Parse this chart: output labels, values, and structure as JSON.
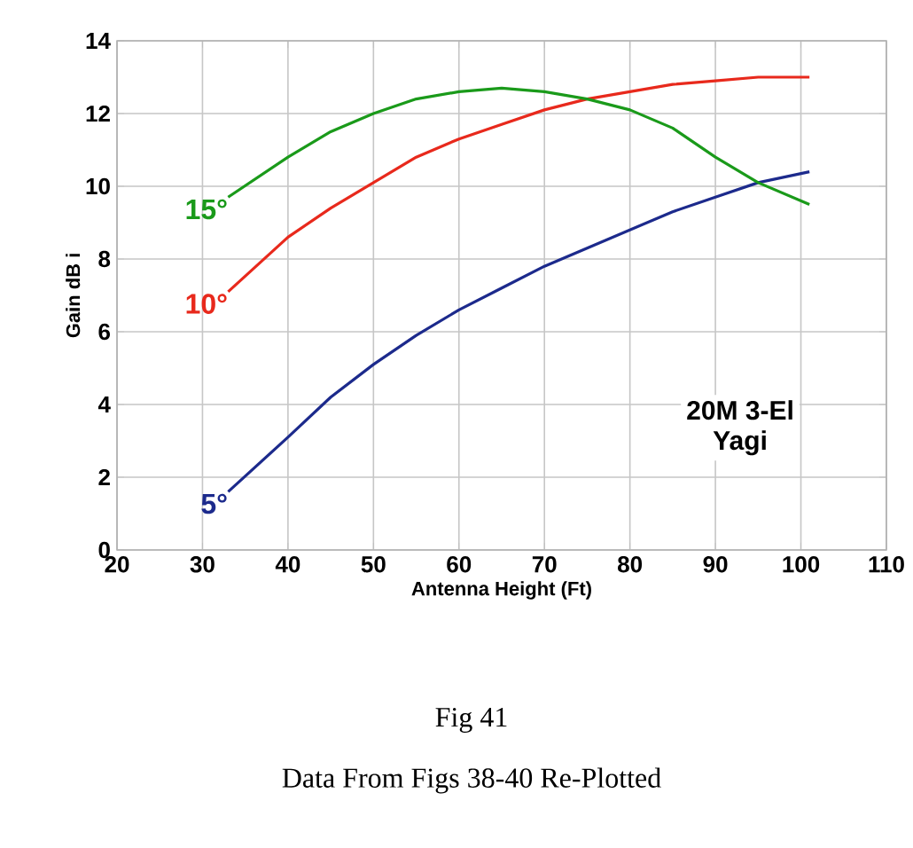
{
  "chart_data": {
    "type": "line",
    "xlabel": "Antenna Height (Ft)",
    "ylabel": "Gain dB i",
    "x": [
      33,
      40,
      45,
      50,
      55,
      60,
      65,
      70,
      75,
      80,
      85,
      90,
      95,
      101
    ],
    "series": [
      {
        "name": "5°",
        "color": "#1c2a8c",
        "values": [
          1.6,
          3.1,
          4.2,
          5.1,
          5.9,
          6.6,
          7.2,
          7.8,
          8.3,
          8.8,
          9.3,
          9.7,
          10.1,
          10.4
        ]
      },
      {
        "name": "10°",
        "color": "#e8291c",
        "values": [
          7.1,
          8.6,
          9.4,
          10.1,
          10.8,
          11.3,
          11.7,
          12.1,
          12.4,
          12.6,
          12.8,
          12.9,
          13.0,
          13.0
        ]
      },
      {
        "name": "15°",
        "color": "#1a9a1a",
        "values": [
          9.7,
          10.8,
          11.5,
          12.0,
          12.4,
          12.6,
          12.7,
          12.6,
          12.4,
          12.1,
          11.6,
          10.8,
          10.1,
          9.5
        ]
      }
    ],
    "xlim": [
      20,
      110
    ],
    "ylim": [
      0,
      14
    ],
    "xticks": [
      20,
      30,
      40,
      50,
      60,
      70,
      80,
      90,
      100,
      110
    ],
    "yticks": [
      0,
      2,
      4,
      6,
      8,
      10,
      12,
      14
    ],
    "grid": true,
    "annotations": [
      "20M 3-El",
      "Yagi",
      "Fig 41",
      "Data From Figs 38-40 Re-Plotted"
    ]
  }
}
